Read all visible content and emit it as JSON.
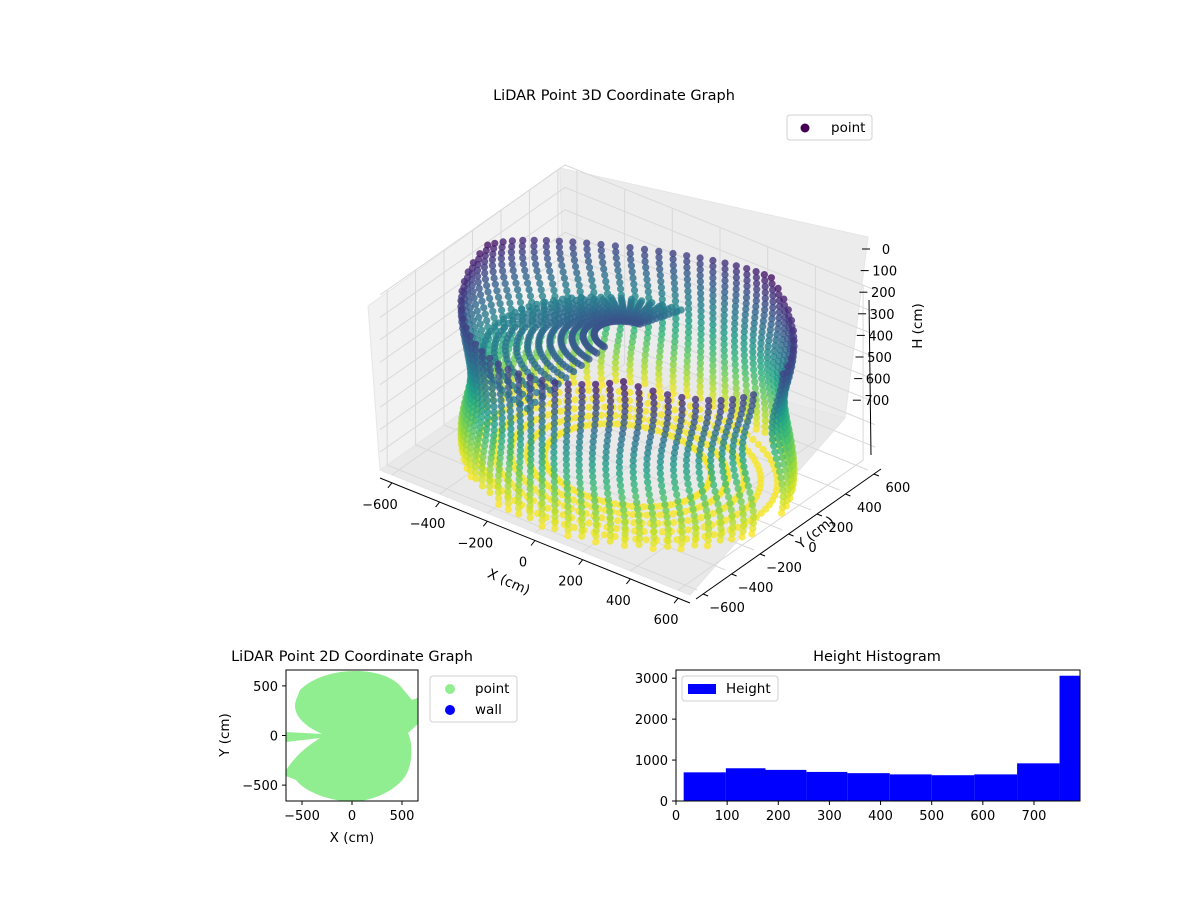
{
  "chart_data": [
    {
      "type": "scatter3d",
      "title": "LiDAR Point 3D Coordinate Graph",
      "xlabel": "X (cm)",
      "ylabel": "Y (cm)",
      "zlabel": "H (cm)",
      "xticks": [
        "−600",
        "−400",
        "−200",
        "0",
        "200",
        "400",
        "600"
      ],
      "yticks": [
        "600",
        "400",
        "200",
        "0",
        "−200",
        "−400",
        "−600"
      ],
      "zticks": [
        "0",
        "100",
        "200",
        "300",
        "400",
        "500",
        "600",
        "700"
      ],
      "xlim": [
        -650,
        650
      ],
      "ylim": [
        -650,
        650
      ],
      "zlim": [
        0,
        780
      ],
      "z_inverted": true,
      "colormap": "viridis",
      "legend": [
        {
          "label": "point",
          "color": "#440154"
        }
      ],
      "legend_position": "top-right",
      "grid": true,
      "shape": "cylinder wall of vertical scan arcs, radius ~600 cm, heights 0–780 cm, opening near Y≈0 on the +X side"
    },
    {
      "type": "scatter",
      "title": "LiDAR Point 2D Coordinate Graph",
      "xlabel": "X (cm)",
      "ylabel": "Y (cm)",
      "xticks": [
        "−500",
        "0",
        "500"
      ],
      "yticks": [
        "500",
        "0",
        "−500"
      ],
      "xlim": [
        -660,
        660
      ],
      "ylim": [
        -660,
        660
      ],
      "series": [
        {
          "name": "point",
          "color": "#90ee90"
        },
        {
          "name": "wall",
          "color": "#0000ff"
        }
      ],
      "legend_position": "outside-right"
    },
    {
      "type": "bar",
      "title": "Height Histogram",
      "xticks": [
        "0",
        "100",
        "200",
        "300",
        "400",
        "500",
        "600",
        "700"
      ],
      "yticks": [
        "0",
        "1000",
        "2000",
        "3000"
      ],
      "xlim": [
        0,
        790
      ],
      "ylim": [
        0,
        3200
      ],
      "bin_edges": [
        15,
        97.5,
        175,
        255,
        335,
        418,
        500,
        583,
        667,
        750,
        790
      ],
      "values": [
        700,
        800,
        760,
        710,
        680,
        650,
        630,
        650,
        920,
        3060
      ],
      "series": [
        {
          "name": "Height",
          "color": "#0000ff"
        }
      ],
      "legend_position": "top-left"
    }
  ]
}
